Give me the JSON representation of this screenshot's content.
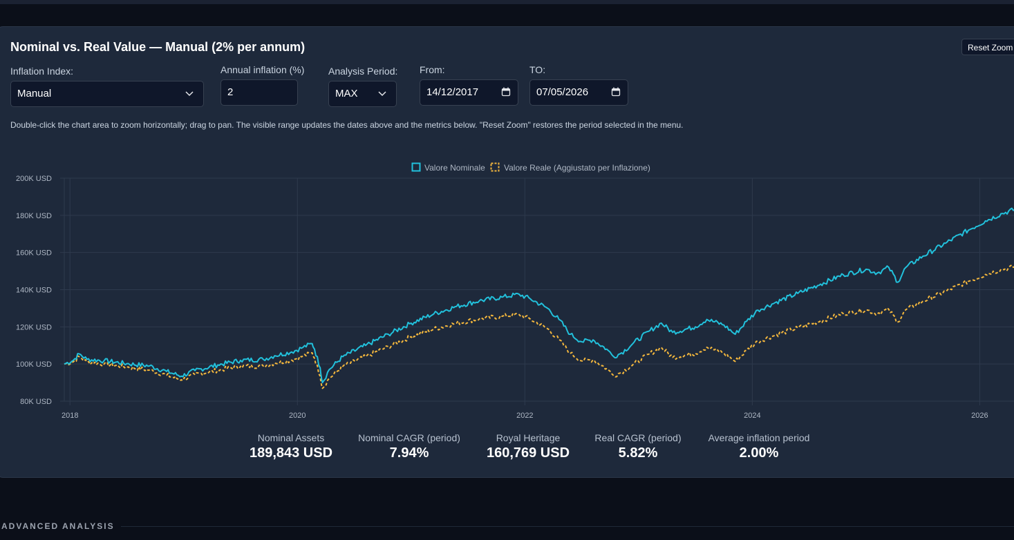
{
  "card": {
    "title": "Nominal vs. Real Value — Manual (2% per annum)",
    "reset_zoom_label": "Reset Zoom",
    "hint": "Double-click the chart area to zoom horizontally; drag to pan. The visible range updates the dates above and the metrics below. \"Reset Zoom\" restores the period selected in the menu."
  },
  "controls": {
    "inflation_index": {
      "label": "Inflation Index:",
      "value": "Manual",
      "icon": "chevron-down-icon"
    },
    "annual_inflation": {
      "label": "Annual inflation (%)",
      "value": "2"
    },
    "analysis_period": {
      "label": "Analysis Period:",
      "value": "MAX",
      "icon": "chevron-down-icon"
    },
    "from": {
      "label": "From:",
      "value": "14/12/2017",
      "icon": "calendar-icon"
    },
    "to": {
      "label": "TO:",
      "value": "07/05/2026",
      "icon": "calendar-icon"
    }
  },
  "colors": {
    "nominal": "#22c1dc",
    "real": "#f5b83d",
    "grid": "#2e3a4d",
    "tick_text": "#aeb7c4"
  },
  "chart_data": {
    "type": "line",
    "x_ticks": [
      "2018",
      "2020",
      "2022",
      "2024",
      "2026"
    ],
    "y_ticks": [
      "80K USD",
      "100K USD",
      "120K USD",
      "140K USD",
      "160K USD",
      "180K USD",
      "200K USD"
    ],
    "xlim": [
      2017.95,
      2026.35
    ],
    "ylim": [
      80000,
      200000
    ],
    "grid": true,
    "legend_position": "top-center",
    "series": [
      {
        "name": "Valore Nominale",
        "style": "solid",
        "points": [
          [
            2017.95,
            100000
          ],
          [
            2018.03,
            102000
          ],
          [
            2018.08,
            105500
          ],
          [
            2018.15,
            102500
          ],
          [
            2018.3,
            101800
          ],
          [
            2018.5,
            100200
          ],
          [
            2018.7,
            99000
          ],
          [
            2018.85,
            96000
          ],
          [
            2018.98,
            93500
          ],
          [
            2019.1,
            96500
          ],
          [
            2019.3,
            99500
          ],
          [
            2019.5,
            102000
          ],
          [
            2019.7,
            102500
          ],
          [
            2019.8,
            104500
          ],
          [
            2019.95,
            106500
          ],
          [
            2020.05,
            109000
          ],
          [
            2020.13,
            111000
          ],
          [
            2020.15,
            108000
          ],
          [
            2020.2,
            98000
          ],
          [
            2020.22,
            90000
          ],
          [
            2020.28,
            97000
          ],
          [
            2020.4,
            104000
          ],
          [
            2020.6,
            110000
          ],
          [
            2020.8,
            116000
          ],
          [
            2021.0,
            122000
          ],
          [
            2021.2,
            127000
          ],
          [
            2021.4,
            131000
          ],
          [
            2021.6,
            134000
          ],
          [
            2021.8,
            136000
          ],
          [
            2021.95,
            137500
          ],
          [
            2022.05,
            135000
          ],
          [
            2022.2,
            130000
          ],
          [
            2022.3,
            124000
          ],
          [
            2022.4,
            116000
          ],
          [
            2022.5,
            112000
          ],
          [
            2022.6,
            113000
          ],
          [
            2022.72,
            108000
          ],
          [
            2022.78,
            104000
          ],
          [
            2022.85,
            106000
          ],
          [
            2022.95,
            111000
          ],
          [
            2023.1,
            118000
          ],
          [
            2023.2,
            122000
          ],
          [
            2023.3,
            117000
          ],
          [
            2023.5,
            120000
          ],
          [
            2023.6,
            124000
          ],
          [
            2023.75,
            121000
          ],
          [
            2023.85,
            116000
          ],
          [
            2023.95,
            123000
          ],
          [
            2024.05,
            129000
          ],
          [
            2024.2,
            133000
          ],
          [
            2024.4,
            138000
          ],
          [
            2024.6,
            143000
          ],
          [
            2024.8,
            148000
          ],
          [
            2025.0,
            151000
          ],
          [
            2025.1,
            149000
          ],
          [
            2025.2,
            152000
          ],
          [
            2025.28,
            144000
          ],
          [
            2025.35,
            152000
          ],
          [
            2025.5,
            158000
          ],
          [
            2025.7,
            165000
          ],
          [
            2025.9,
            172000
          ],
          [
            2026.05,
            177000
          ],
          [
            2026.2,
            181000
          ],
          [
            2026.35,
            184000
          ]
        ]
      },
      {
        "name": "Valore Reale (Aggiustato per Inflazione)",
        "style": "dashed",
        "points": [
          [
            2017.95,
            100000
          ],
          [
            2018.03,
            101200
          ],
          [
            2018.08,
            104000
          ],
          [
            2018.15,
            101000
          ],
          [
            2018.3,
            100000
          ],
          [
            2018.5,
            98400
          ],
          [
            2018.7,
            96800
          ],
          [
            2018.85,
            94000
          ],
          [
            2018.98,
            91500
          ],
          [
            2019.1,
            94200
          ],
          [
            2019.3,
            96700
          ],
          [
            2019.5,
            98800
          ],
          [
            2019.7,
            98900
          ],
          [
            2019.8,
            100500
          ],
          [
            2019.95,
            102100
          ],
          [
            2020.05,
            104300
          ],
          [
            2020.13,
            106000
          ],
          [
            2020.15,
            103100
          ],
          [
            2020.2,
            93500
          ],
          [
            2020.22,
            86900
          ],
          [
            2020.28,
            92300
          ],
          [
            2020.4,
            98800
          ],
          [
            2020.6,
            104000
          ],
          [
            2020.8,
            109400
          ],
          [
            2021.0,
            114700
          ],
          [
            2021.2,
            118800
          ],
          [
            2021.4,
            122000
          ],
          [
            2021.6,
            124300
          ],
          [
            2021.8,
            125700
          ],
          [
            2021.95,
            126600
          ],
          [
            2022.05,
            124100
          ],
          [
            2022.2,
            119000
          ],
          [
            2022.3,
            113100
          ],
          [
            2022.4,
            105800
          ],
          [
            2022.5,
            101700
          ],
          [
            2022.6,
            102300
          ],
          [
            2022.72,
            97500
          ],
          [
            2022.78,
            93800
          ],
          [
            2022.85,
            95600
          ],
          [
            2022.95,
            99600
          ],
          [
            2023.1,
            105600
          ],
          [
            2023.2,
            108900
          ],
          [
            2023.3,
            103600
          ],
          [
            2023.5,
            105700
          ],
          [
            2023.6,
            109000
          ],
          [
            2023.75,
            105900
          ],
          [
            2023.85,
            101400
          ],
          [
            2023.95,
            107300
          ],
          [
            2024.05,
            112300
          ],
          [
            2024.2,
            115500
          ],
          [
            2024.4,
            119400
          ],
          [
            2024.6,
            123200
          ],
          [
            2024.8,
            127100
          ],
          [
            2025.0,
            129100
          ],
          [
            2025.1,
            127200
          ],
          [
            2025.2,
            129400
          ],
          [
            2025.28,
            122600
          ],
          [
            2025.35,
            129200
          ],
          [
            2025.5,
            133800
          ],
          [
            2025.7,
            139100
          ],
          [
            2025.9,
            144500
          ],
          [
            2026.05,
            148200
          ],
          [
            2026.2,
            151000
          ],
          [
            2026.35,
            153000
          ]
        ]
      }
    ]
  },
  "metrics": [
    {
      "label": "Nominal Assets",
      "value": "189,843 USD"
    },
    {
      "label": "Nominal CAGR (period)",
      "value": "7.94%"
    },
    {
      "label": "Royal Heritage",
      "value": "160,769 USD"
    },
    {
      "label": "Real CAGR (period)",
      "value": "5.82%"
    },
    {
      "label": "Average inflation period",
      "value": "2.00%"
    }
  ],
  "section": {
    "title": "ADVANCED ANALYSIS"
  }
}
